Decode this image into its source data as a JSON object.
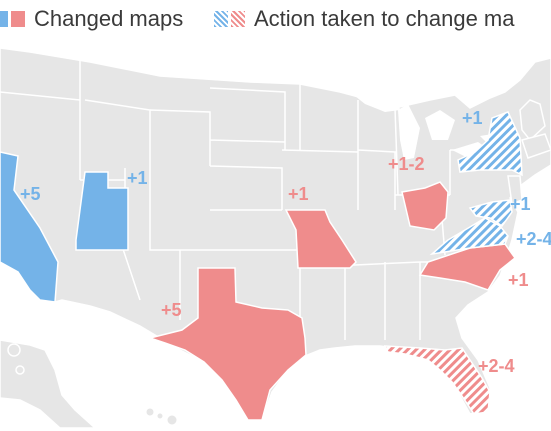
{
  "legend": {
    "changed_maps": "Changed maps",
    "action_taken": "Action taken to change ma"
  },
  "colors": {
    "democrat_blue": "#74b3e8",
    "republican_red": "#ef8c8c",
    "background_state": "#e6e6e6",
    "border": "#ffffff"
  },
  "states": {
    "california": {
      "label": "+5",
      "party": "D",
      "status": "changed"
    },
    "utah": {
      "label": "+1",
      "party": "D",
      "status": "changed"
    },
    "texas": {
      "label": "+5",
      "party": "R",
      "status": "changed"
    },
    "missouri": {
      "label": "+1",
      "party": "R",
      "status": "changed"
    },
    "ohio": {
      "label": "+1-2",
      "party": "R",
      "status": "changed"
    },
    "north_carolina": {
      "label": "+1",
      "party": "R",
      "status": "changed"
    },
    "florida": {
      "label": "+2-4",
      "party": "R",
      "status": "action"
    },
    "new_york": {
      "label": "+1",
      "party": "D",
      "status": "action"
    },
    "maryland": {
      "label": "+1",
      "party": "D",
      "status": "action"
    },
    "virginia": {
      "label": "+2-4",
      "party": "D",
      "status": "action"
    }
  }
}
